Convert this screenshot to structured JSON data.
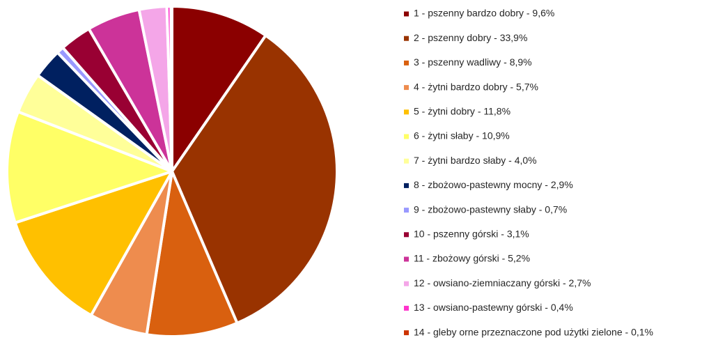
{
  "chart_data": {
    "type": "pie",
    "categories": [
      "1 - pszenny bardzo dobry - 9,6%",
      "2 - pszenny dobry - 33,9%",
      "3 - pszenny wadliwy - 8,9%",
      "4 - żytni bardzo dobry - 5,7%",
      "5 - żytni dobry - 11,8%",
      "6 - żytni słaby - 10,9%",
      "7 - żytni bardzo słaby - 4,0%",
      "8 - zbożowo-pastewny mocny - 2,9%",
      "9 - zbożowo-pastewny słaby - 0,7%",
      "10 - pszenny górski - 3,1%",
      "11 - zbożowy górski - 5,2%",
      "12 - owsiano-ziemniaczany górski - 2,7%",
      "13 - owsiano-pastewny górski - 0,4%",
      "14 - gleby orne przeznaczone pod użytki zielone - 0,1%"
    ],
    "values": [
      9.6,
      33.9,
      8.9,
      5.7,
      11.8,
      10.9,
      4.0,
      2.9,
      0.7,
      3.1,
      5.2,
      2.7,
      0.4,
      0.1
    ],
    "colors": [
      "#8b0000",
      "#993300",
      "#d9600f",
      "#ee8c4e",
      "#ffc000",
      "#ffff66",
      "#ffff99",
      "#002060",
      "#9999ff",
      "#990033",
      "#cc3399",
      "#f4a6e8",
      "#ff33cc",
      "#cc3300"
    ],
    "legend": "right"
  }
}
